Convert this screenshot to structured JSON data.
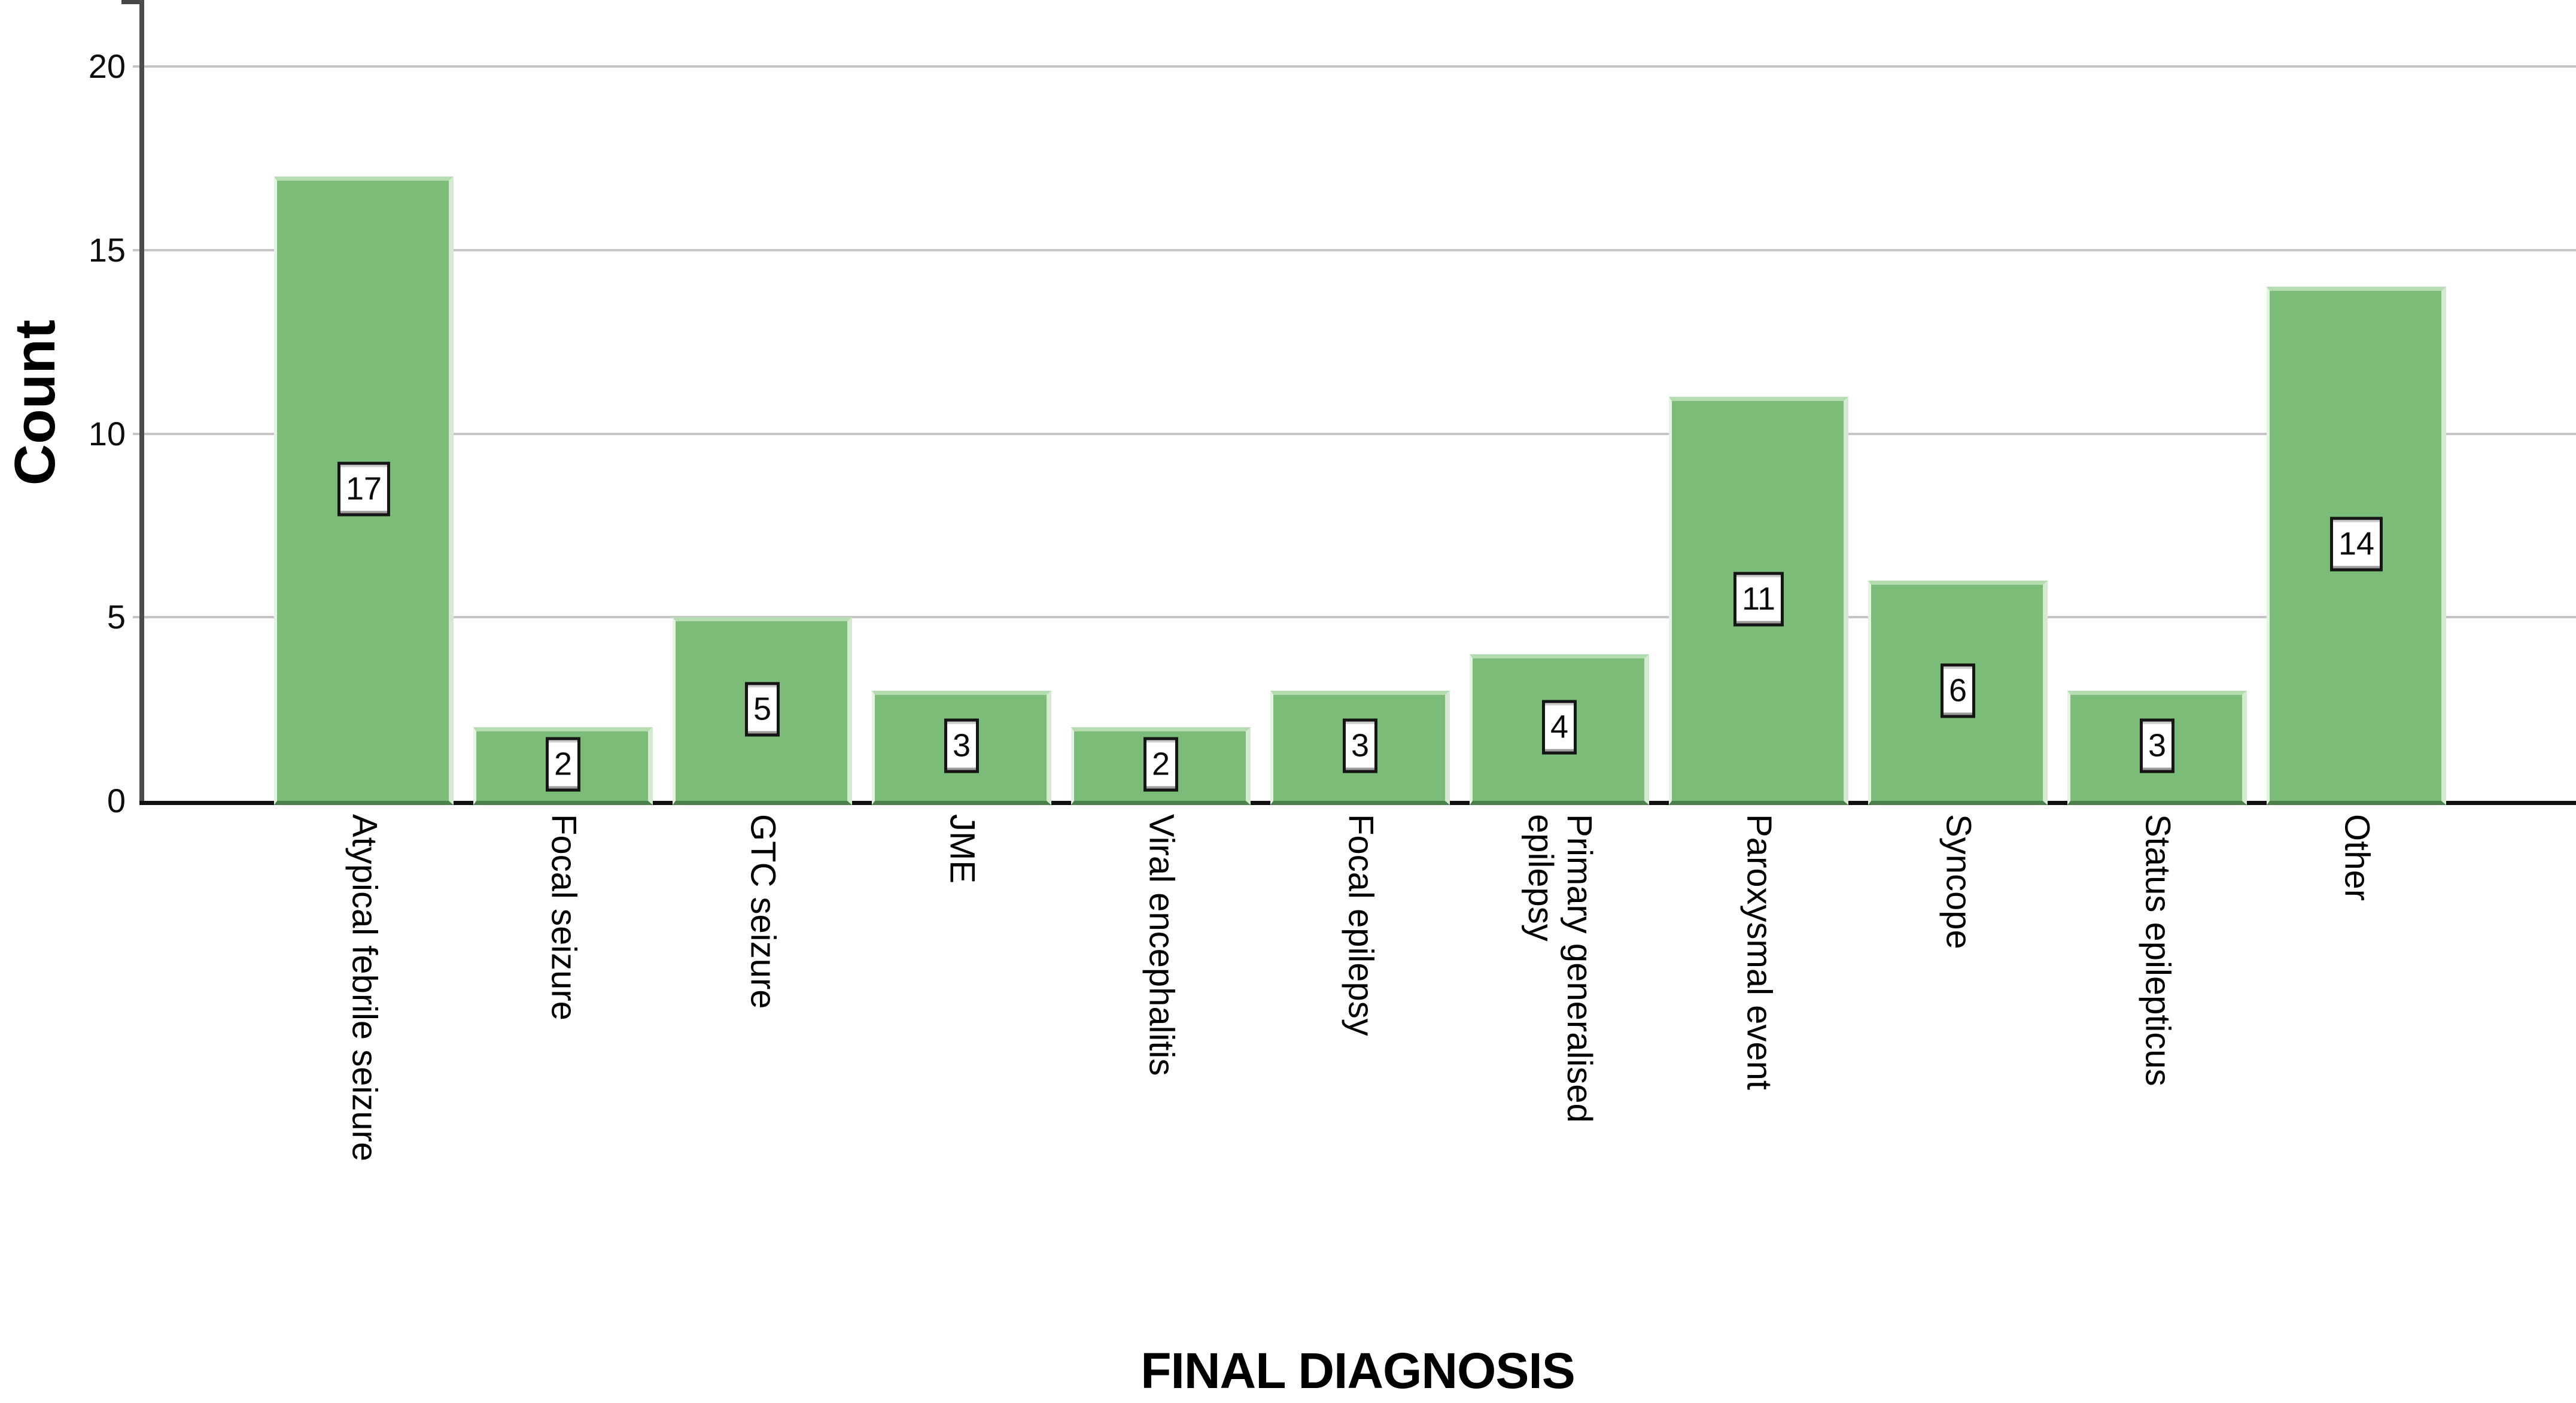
{
  "chart_data": {
    "type": "bar",
    "title": "",
    "xlabel": "FINAL DIAGNOSIS",
    "ylabel": "Count",
    "categories": [
      "Atypical febrile seizure",
      "Focal seizure",
      "GTC seizure",
      "JME",
      "Viral encephalitis",
      "Focal epilepsy",
      "Primary generalised epilepsy",
      "Paroxysmal event",
      "Syncope",
      "Status epilepticus",
      "Other"
    ],
    "category_label_lines": [
      [
        "Atypical febrile seizure"
      ],
      [
        "Focal seizure"
      ],
      [
        "GTC seizure"
      ],
      [
        "JME"
      ],
      [
        "Viral encephalitis"
      ],
      [
        "Focal epilepsy"
      ],
      [
        "Primary generalised",
        "epilepsy"
      ],
      [
        "Paroxysmal event"
      ],
      [
        "Syncope"
      ],
      [
        "Status epilepticus"
      ],
      [
        "Other"
      ]
    ],
    "values": [
      17,
      2,
      5,
      3,
      2,
      3,
      4,
      11,
      6,
      3,
      14
    ],
    "data_labels_shown": true,
    "data_label_style": "white box with black frame, centered in bar",
    "yticks": [
      0,
      5,
      10,
      15,
      20
    ],
    "ytick_labels": [
      "0",
      "5",
      "10",
      "15",
      "20"
    ],
    "ylim": [
      0,
      21.8
    ],
    "grid": "horizontal gridlines at 5,10,15,20",
    "legend_position": "none",
    "bar_orientation": "vertical",
    "category_label_orientation": "rotated 90 degrees, reading top to bottom"
  },
  "style": {
    "bar_fill": "#7abc78",
    "bar_highlight_top": "#b5dcb1",
    "bar_highlight_right": "#d3ead0",
    "bar_base_dark": "#4c804b",
    "gridline_color": "#c5c5c5",
    "y_axis_color": "#4c4c4c",
    "x_axis_color": "#101010",
    "label_box_bg": "#ffffff",
    "label_box_border": "#151515",
    "text_color": "#000000",
    "background": "#ffffff"
  },
  "axes": {
    "y_title": "Count",
    "x_title": "FINAL DIAGNOSIS"
  }
}
